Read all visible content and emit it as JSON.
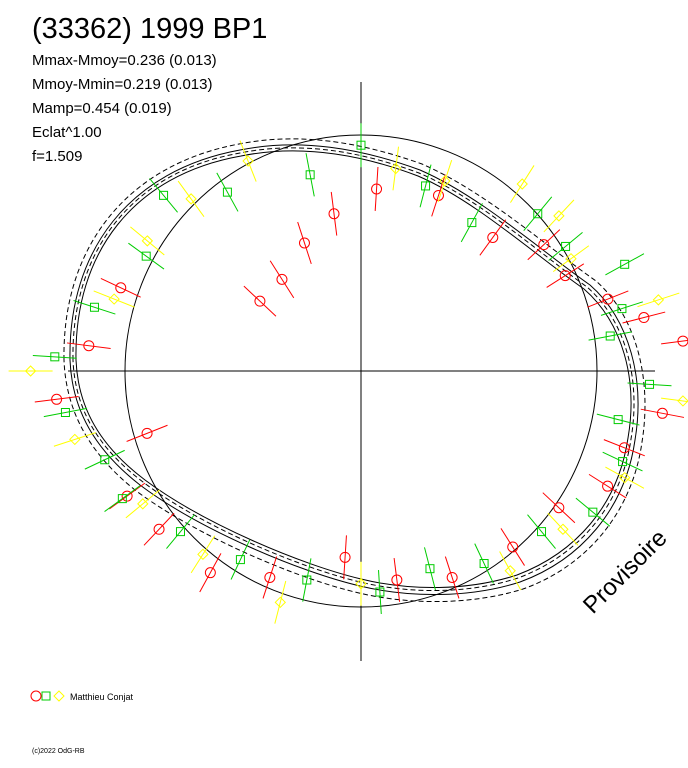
{
  "header": {
    "title": "(33362) 1999 BP1",
    "lines": [
      "Mmax-Mmoy=0.236 (0.013)",
      "Mmoy-Mmin=0.219 (0.013)",
      "Mamp=0.454 (0.019)",
      "Eclat^1.00",
      "f=1.509"
    ]
  },
  "watermark": "Provisoire",
  "legend": {
    "observer": "Matthieu Conjat",
    "markers": [
      "red-circle",
      "green-square",
      "yellow-diamond"
    ]
  },
  "copyright": "(c)2022 OdG-RB",
  "colors": {
    "red": "#ff0000",
    "green": "#00cc00",
    "yellow": "#ffff00",
    "axes": "#000000"
  },
  "chart_data": {
    "type": "scatter",
    "polar": true,
    "axes": {
      "crosshair": true,
      "reference_circle": true
    },
    "series": [
      {
        "marker": "circle",
        "color": "#ff0000",
        "points": [
          [
            0.02,
            1.1
          ],
          [
            0.04,
            0.99
          ],
          [
            0.06,
            0.9
          ],
          [
            0.09,
            0.82
          ],
          [
            0.12,
            0.85
          ],
          [
            0.15,
            0.76
          ],
          [
            0.2,
            0.85
          ],
          [
            0.24,
            0.84
          ],
          [
            0.27,
            0.73
          ],
          [
            0.3,
            0.62
          ],
          [
            0.34,
            0.5
          ],
          [
            0.38,
            0.47
          ],
          [
            0.43,
            0.9
          ],
          [
            0.48,
            0.93
          ],
          [
            0.52,
            1.04
          ],
          [
            0.56,
            0.78
          ],
          [
            0.6,
            0.98
          ],
          [
            0.63,
            1.0
          ],
          [
            0.67,
            1.06
          ],
          [
            0.7,
            1.0
          ],
          [
            0.74,
            0.86
          ],
          [
            0.77,
            0.97
          ],
          [
            0.8,
            1.0
          ],
          [
            0.84,
            0.96
          ],
          [
            0.88,
            0.92
          ],
          [
            0.91,
            0.99
          ],
          [
            0.94,
            0.96
          ],
          [
            0.97,
            1.04
          ]
        ]
      },
      {
        "marker": "square",
        "color": "#00cc00",
        "points": [
          [
            0.03,
            0.86
          ],
          [
            0.05,
            0.93
          ],
          [
            0.08,
            1.02
          ],
          [
            0.11,
            0.9
          ],
          [
            0.14,
            0.94
          ],
          [
            0.17,
            0.78
          ],
          [
            0.21,
            0.88
          ],
          [
            0.25,
            1.04
          ],
          [
            0.28,
            0.92
          ],
          [
            0.33,
            0.94
          ],
          [
            0.36,
            1.05
          ],
          [
            0.4,
            0.9
          ],
          [
            0.45,
            0.95
          ],
          [
            0.49,
            1.04
          ],
          [
            0.53,
            1.02
          ],
          [
            0.57,
            0.96
          ],
          [
            0.6,
            1.0
          ],
          [
            0.64,
            0.96
          ],
          [
            0.68,
            0.96
          ],
          [
            0.72,
            0.98
          ],
          [
            0.76,
            1.02
          ],
          [
            0.79,
            0.94
          ],
          [
            0.82,
            0.98
          ],
          [
            0.86,
            0.96
          ],
          [
            0.89,
            1.02
          ],
          [
            0.93,
            0.98
          ],
          [
            0.96,
            0.9
          ],
          [
            0.99,
            0.98
          ]
        ]
      },
      {
        "marker": "diamond",
        "color": "#ffff00",
        "points": [
          [
            0.05,
            1.06
          ],
          [
            0.1,
            0.88
          ],
          [
            0.13,
            0.98
          ],
          [
            0.16,
            1.02
          ],
          [
            0.2,
            0.92
          ],
          [
            0.23,
            0.94
          ],
          [
            0.31,
            1.04
          ],
          [
            0.35,
            0.98
          ],
          [
            0.39,
            0.94
          ],
          [
            0.44,
            0.9
          ],
          [
            0.5,
            1.12
          ],
          [
            0.55,
            1.02
          ],
          [
            0.61,
            0.96
          ],
          [
            0.66,
            1.0
          ],
          [
            0.71,
            1.1
          ],
          [
            0.75,
            0.98
          ],
          [
            0.83,
            1.05
          ],
          [
            0.87,
            1.0
          ],
          [
            0.92,
            1.02
          ],
          [
            0.98,
            1.1
          ]
        ]
      }
    ]
  }
}
